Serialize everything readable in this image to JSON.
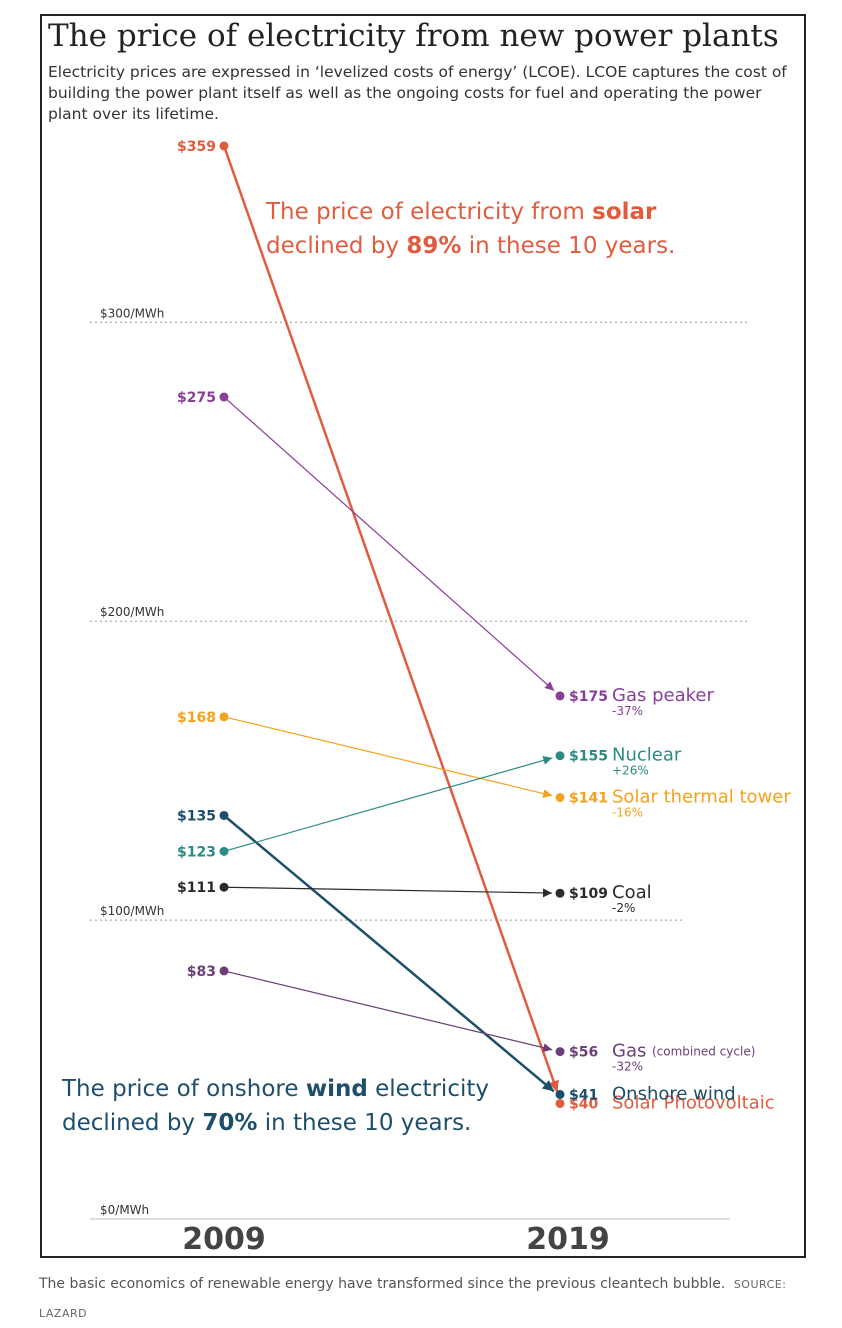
{
  "title": "The price of electricity from new power plants",
  "subtitle": "Electricity prices are expressed in ‘levelized costs of energy’ (LCOE). LCOE captures the cost of building the power plant itself as well as the ongoing costs for fuel and operating the power plant over its lifetime.",
  "annotations": {
    "solar": {
      "prefix": "The price of electricity from ",
      "bold1": "solar",
      "middle": "declined by ",
      "bold2": "89%",
      "suffix": " in these 10 years."
    },
    "wind": {
      "prefix": "The price of onshore ",
      "bold1": "wind",
      "rest1": " electricity",
      "middle": "declined by ",
      "bold2": "70%",
      "suffix": " in these 10 years."
    }
  },
  "caption": {
    "text": "The basic economics of renewable energy have transformed since the previous cleantech bubble.",
    "source": "SOURCE: LAZARD"
  },
  "chart_data": {
    "type": "line",
    "title": "The price of electricity from new power plants",
    "x": [
      "2009",
      "2019"
    ],
    "ylim": [
      0,
      359
    ],
    "yticks": [
      {
        "value": 0,
        "label": "$0/MWh"
      },
      {
        "value": 100,
        "label": "$100/MWh"
      },
      {
        "value": 200,
        "label": "$200/MWh"
      },
      {
        "value": 300,
        "label": "$300/MWh"
      }
    ],
    "grid": true,
    "series": [
      {
        "name": "Solar Photovoltaic",
        "values": [
          359,
          40
        ],
        "labels": [
          "$359",
          "$40"
        ],
        "change": "",
        "color": "#e05c3f",
        "width": 2.5
      },
      {
        "name": "Gas peaker",
        "values": [
          275,
          175
        ],
        "labels": [
          "$275",
          "$175"
        ],
        "change": "-37%",
        "color": "#8a3e9a",
        "width": 1.2
      },
      {
        "name": "Solar thermal tower",
        "values": [
          168,
          141
        ],
        "labels": [
          "$168",
          "$141"
        ],
        "change": "-16%",
        "color": "#f4a21d",
        "width": 1.2
      },
      {
        "name": "Onshore wind",
        "values": [
          135,
          41
        ],
        "labels": [
          "$135",
          "$41"
        ],
        "change": "",
        "color": "#1d4e6b",
        "width": 2.5
      },
      {
        "name": "Nuclear",
        "values": [
          123,
          155
        ],
        "labels": [
          "$123",
          "$155"
        ],
        "change": "+26%",
        "color": "#2a8c83",
        "width": 1.2
      },
      {
        "name": "Coal",
        "values": [
          111,
          109
        ],
        "labels": [
          "$111",
          "$109"
        ],
        "change": "-2%",
        "color": "#2b2b2b",
        "width": 1.2
      },
      {
        "name": "Gas",
        "qualifier": "(combined cycle)",
        "values": [
          83,
          56
        ],
        "labels": [
          "$83",
          "$56"
        ],
        "change": "-32%",
        "color": "#6b3f78",
        "width": 1.2
      }
    ]
  }
}
